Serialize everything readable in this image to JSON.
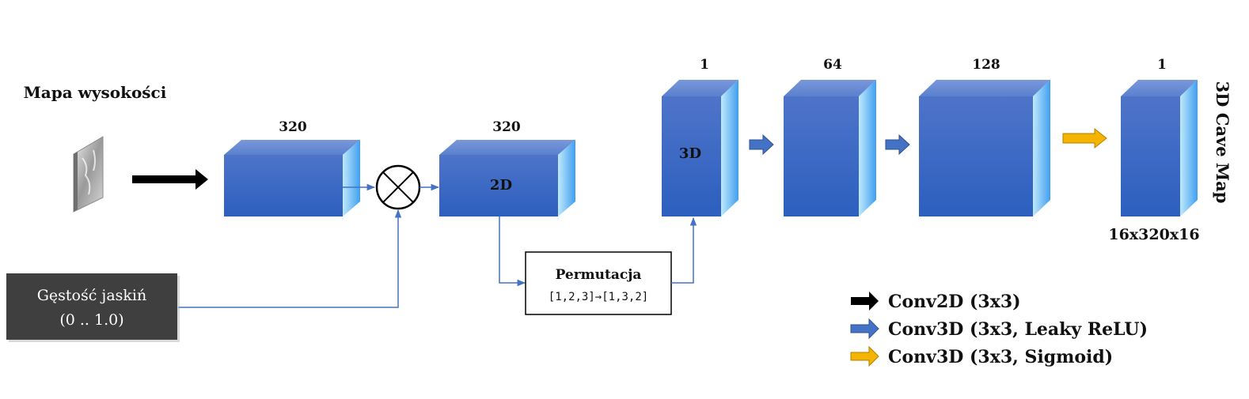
{
  "colors": {
    "block_top": "#5b80cf",
    "block_front_top": "#4a70c8",
    "block_front_bottom": "#2c5fbf",
    "block_side_light": "#b7e6fb",
    "block_side_dark": "#4aa6ef",
    "connector": "#4472c4",
    "conv2d_arrow": "#000000",
    "conv3d_arrow": "#4472c4",
    "sigmoid_arrow": "#f4b400",
    "cave_box": "#3f3f3f"
  },
  "inputs": {
    "heightmap_label": "Mapa wysokości",
    "cave_density_line1": "Gęstość jaskiń",
    "cave_density_line2": "(0 .. 1.0)"
  },
  "blocks": {
    "conv2d_first_channels": "320",
    "conv2d_second_channels": "320",
    "conv2d_second_label": "2D",
    "conv3d_first_channels": "1",
    "conv3d_first_label": "3D",
    "conv3d_second_channels": "64",
    "conv3d_third_channels": "128",
    "output_channels": "1",
    "output_size": "16x320x16",
    "output_title": "3D Cave Map"
  },
  "permutation": {
    "title": "Permutacja",
    "formula": "[1,2,3]→[1,3,2]"
  },
  "legend": {
    "conv2d": "Conv2D (3x3)",
    "conv3d_leaky": "Conv3D (3x3, Leaky ReLU)",
    "conv3d_sigmoid": "Conv3D (3x3, Sigmoid)"
  }
}
